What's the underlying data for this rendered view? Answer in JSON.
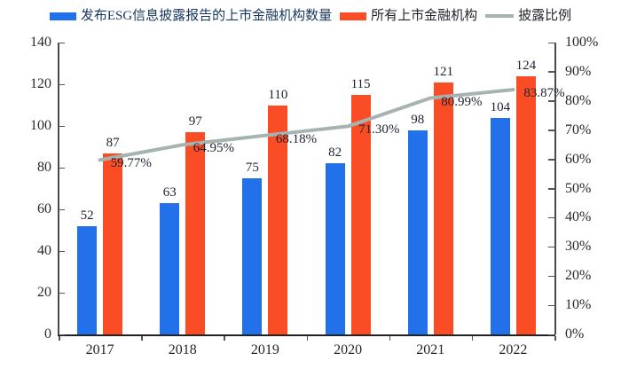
{
  "legend": {
    "items": [
      {
        "label": "发布ESG信息披露报告的上市金融机构数量",
        "swatch": "bar",
        "color": "#2371EA",
        "label_color": "#17375E"
      },
      {
        "label": "所有上市金融机构",
        "swatch": "bar",
        "color": "#FA4D26",
        "label_color": "#23262c"
      },
      {
        "label": "披露比例",
        "swatch": "line",
        "color": "#A7B3B1",
        "label_color": "#23262c"
      }
    ]
  },
  "chart_data": {
    "type": "bar",
    "subtype": "grouped-bars-with-line",
    "categories": [
      "2017",
      "2018",
      "2019",
      "2020",
      "2021",
      "2022"
    ],
    "series": [
      {
        "name": "发布ESG信息披露报告的上市金融机构数量",
        "type": "bar",
        "axis": "left",
        "color": "#2371EA",
        "values": [
          52,
          63,
          75,
          82,
          98,
          104
        ]
      },
      {
        "name": "所有上市金融机构",
        "type": "bar",
        "axis": "left",
        "color": "#FA4D26",
        "values": [
          87,
          97,
          110,
          115,
          121,
          124
        ]
      },
      {
        "name": "披露比例",
        "type": "line",
        "axis": "right",
        "color": "#A7B3B1",
        "values": [
          59.77,
          64.95,
          68.18,
          71.3,
          80.99,
          83.87
        ],
        "value_labels": [
          "59.77%",
          "64.95%",
          "68.18%",
          "71.30%",
          "80.99%",
          "83.87%"
        ]
      }
    ],
    "left_axis": {
      "min": 0,
      "max": 140,
      "step": 20,
      "tick_labels": [
        "0",
        "20",
        "40",
        "60",
        "80",
        "100",
        "120",
        "140"
      ]
    },
    "right_axis": {
      "min": 0,
      "max": 100,
      "step": 10,
      "tick_labels": [
        "0%",
        "10%",
        "20%",
        "30%",
        "40%",
        "50%",
        "60%",
        "70%",
        "80%",
        "90%",
        "100%"
      ]
    },
    "grid": false,
    "legend_position": "top",
    "title": ""
  }
}
